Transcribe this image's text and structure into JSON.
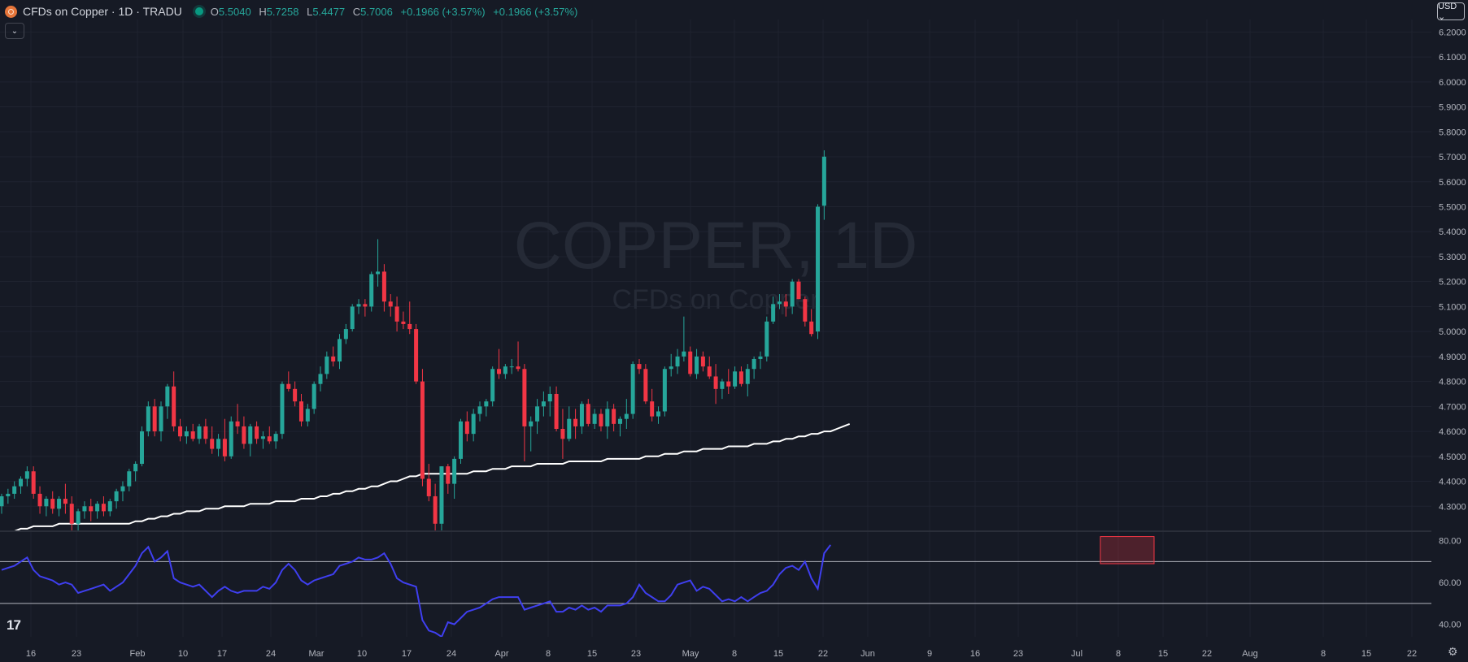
{
  "header": {
    "symbol_title": "CFDs on Copper · 1D · TRADU",
    "ohlc": {
      "o_label": "O",
      "o": "5.5040",
      "h_label": "H",
      "h": "5.7258",
      "l_label": "L",
      "l": "5.4477",
      "c_label": "C",
      "c": "5.7006",
      "change": "+0.1966 (+3.57%)",
      "change2": "+0.1966 (+3.57%)"
    }
  },
  "currency_button": "USD ⌄",
  "collapse_icon": "chevron-down-icon",
  "logo_text": "17",
  "settings_icon": "gear-icon",
  "colors": {
    "background": "#161a25",
    "up": "#26a69a",
    "down": "#f23645",
    "ma": "#ffffff",
    "rsi": "#3f3ff0",
    "grid": "#1f2330",
    "axis_text": "#b2b5be"
  },
  "chart_data": {
    "type": "candlestick",
    "watermark": {
      "main": "COPPER, 1D",
      "sub": "CFDs on Copper"
    },
    "price_axis": {
      "ylim": [
        4.2,
        6.25
      ],
      "ticks": [
        "4.3000",
        "4.4000",
        "4.5000",
        "4.6000",
        "4.7000",
        "4.8000",
        "4.9000",
        "5.0000",
        "5.1000",
        "5.2000",
        "5.3000",
        "5.4000",
        "5.5000",
        "5.6000",
        "5.7000",
        "5.8000",
        "5.9000",
        "6.0000",
        "6.1000",
        "6.2000"
      ]
    },
    "time_axis": {
      "labels": [
        "16",
        "23",
        "Feb",
        "10",
        "17",
        "24",
        "Mar",
        "10",
        "17",
        "24",
        "Apr",
        "8",
        "15",
        "23",
        "May",
        "8",
        "15",
        "22",
        "Jun",
        "9",
        "16",
        "23",
        "Jul",
        "8",
        "15",
        "22",
        "Aug",
        "8",
        "15",
        "22"
      ]
    },
    "candles": [
      [
        4.3,
        4.35,
        4.27,
        4.34
      ],
      [
        4.34,
        4.37,
        4.31,
        4.35
      ],
      [
        4.35,
        4.4,
        4.33,
        4.38
      ],
      [
        4.38,
        4.42,
        4.35,
        4.41
      ],
      [
        4.41,
        4.46,
        4.38,
        4.44
      ],
      [
        4.44,
        4.46,
        4.33,
        4.35
      ],
      [
        4.35,
        4.38,
        4.27,
        4.3
      ],
      [
        4.3,
        4.34,
        4.26,
        4.33
      ],
      [
        4.33,
        4.36,
        4.27,
        4.29
      ],
      [
        4.29,
        4.34,
        4.26,
        4.33
      ],
      [
        4.33,
        4.39,
        4.27,
        4.31
      ],
      [
        4.31,
        4.34,
        4.2,
        4.23
      ],
      [
        4.23,
        4.29,
        4.2,
        4.28
      ],
      [
        4.28,
        4.32,
        4.25,
        4.3
      ],
      [
        4.3,
        4.33,
        4.24,
        4.28
      ],
      [
        4.28,
        4.32,
        4.25,
        4.31
      ],
      [
        4.31,
        4.34,
        4.26,
        4.28
      ],
      [
        4.28,
        4.33,
        4.26,
        4.32
      ],
      [
        4.32,
        4.37,
        4.29,
        4.36
      ],
      [
        4.36,
        4.4,
        4.32,
        4.38
      ],
      [
        4.38,
        4.45,
        4.36,
        4.44
      ],
      [
        4.44,
        4.48,
        4.4,
        4.47
      ],
      [
        4.47,
        4.62,
        4.46,
        4.6
      ],
      [
        4.6,
        4.72,
        4.58,
        4.7
      ],
      [
        4.7,
        4.73,
        4.58,
        4.6
      ],
      [
        4.6,
        4.72,
        4.56,
        4.7
      ],
      [
        4.7,
        4.79,
        4.65,
        4.78
      ],
      [
        4.78,
        4.84,
        4.6,
        4.62
      ],
      [
        4.62,
        4.65,
        4.56,
        4.58
      ],
      [
        4.58,
        4.62,
        4.55,
        4.6
      ],
      [
        4.6,
        4.63,
        4.56,
        4.57
      ],
      [
        4.57,
        4.63,
        4.55,
        4.62
      ],
      [
        4.62,
        4.65,
        4.55,
        4.57
      ],
      [
        4.57,
        4.62,
        4.51,
        4.53
      ],
      [
        4.53,
        4.59,
        4.5,
        4.57
      ],
      [
        4.57,
        4.65,
        4.48,
        4.5
      ],
      [
        4.5,
        4.66,
        4.49,
        4.64
      ],
      [
        4.64,
        4.71,
        4.59,
        4.62
      ],
      [
        4.62,
        4.66,
        4.53,
        4.55
      ],
      [
        4.55,
        4.63,
        4.5,
        4.62
      ],
      [
        4.62,
        4.64,
        4.55,
        4.57
      ],
      [
        4.57,
        4.6,
        4.53,
        4.58
      ],
      [
        4.58,
        4.62,
        4.55,
        4.56
      ],
      [
        4.56,
        4.6,
        4.53,
        4.59
      ],
      [
        4.59,
        4.8,
        4.57,
        4.79
      ],
      [
        4.79,
        4.84,
        4.76,
        4.77
      ],
      [
        4.77,
        4.8,
        4.7,
        4.72
      ],
      [
        4.72,
        4.75,
        4.62,
        4.64
      ],
      [
        4.64,
        4.71,
        4.62,
        4.69
      ],
      [
        4.69,
        4.8,
        4.67,
        4.79
      ],
      [
        4.79,
        4.86,
        4.76,
        4.83
      ],
      [
        4.83,
        4.92,
        4.81,
        4.9
      ],
      [
        4.9,
        4.94,
        4.86,
        4.88
      ],
      [
        4.88,
        4.99,
        4.85,
        4.97
      ],
      [
        4.97,
        5.03,
        4.95,
        5.01
      ],
      [
        5.01,
        5.11,
        5.0,
        5.1
      ],
      [
        5.1,
        5.13,
        5.07,
        5.11
      ],
      [
        5.11,
        5.13,
        5.06,
        5.1
      ],
      [
        5.1,
        5.24,
        5.08,
        5.23
      ],
      [
        5.23,
        5.37,
        5.18,
        5.24
      ],
      [
        5.24,
        5.27,
        5.08,
        5.12
      ],
      [
        5.12,
        5.15,
        5.06,
        5.1
      ],
      [
        5.1,
        5.14,
        5.0,
        5.04
      ],
      [
        5.04,
        5.08,
        5.01,
        5.03
      ],
      [
        5.03,
        5.12,
        4.99,
        5.01
      ],
      [
        5.01,
        5.03,
        4.79,
        4.8
      ],
      [
        4.8,
        4.85,
        4.38,
        4.41
      ],
      [
        4.41,
        4.47,
        4.32,
        4.34
      ],
      [
        4.34,
        4.39,
        4.2,
        4.23
      ],
      [
        4.23,
        4.46,
        4.2,
        4.46
      ],
      [
        4.46,
        4.47,
        4.35,
        4.39
      ],
      [
        4.39,
        4.5,
        4.33,
        4.49
      ],
      [
        4.49,
        4.65,
        4.47,
        4.64
      ],
      [
        4.64,
        4.68,
        4.56,
        4.59
      ],
      [
        4.59,
        4.69,
        4.56,
        4.67
      ],
      [
        4.67,
        4.72,
        4.64,
        4.7
      ],
      [
        4.7,
        4.73,
        4.66,
        4.72
      ],
      [
        4.72,
        4.86,
        4.7,
        4.85
      ],
      [
        4.85,
        4.93,
        4.81,
        4.83
      ],
      [
        4.83,
        4.87,
        4.81,
        4.86
      ],
      [
        4.86,
        4.89,
        4.83,
        4.86
      ],
      [
        4.86,
        4.96,
        4.84,
        4.85
      ],
      [
        4.85,
        4.87,
        4.48,
        4.62
      ],
      [
        4.62,
        4.66,
        4.52,
        4.64
      ],
      [
        4.64,
        4.73,
        4.59,
        4.7
      ],
      [
        4.7,
        4.76,
        4.66,
        4.72
      ],
      [
        4.72,
        4.78,
        4.66,
        4.75
      ],
      [
        4.75,
        4.78,
        4.6,
        4.61
      ],
      [
        4.61,
        4.69,
        4.49,
        4.57
      ],
      [
        4.57,
        4.7,
        4.56,
        4.65
      ],
      [
        4.65,
        4.69,
        4.57,
        4.62
      ],
      [
        4.62,
        4.72,
        4.59,
        4.71
      ],
      [
        4.71,
        4.73,
        4.62,
        4.63
      ],
      [
        4.63,
        4.69,
        4.61,
        4.67
      ],
      [
        4.67,
        4.69,
        4.6,
        4.62
      ],
      [
        4.62,
        4.72,
        4.57,
        4.69
      ],
      [
        4.69,
        4.71,
        4.6,
        4.63
      ],
      [
        4.63,
        4.66,
        4.58,
        4.65
      ],
      [
        4.65,
        4.73,
        4.61,
        4.67
      ],
      [
        4.67,
        4.88,
        4.65,
        4.87
      ],
      [
        4.87,
        4.89,
        4.83,
        4.85
      ],
      [
        4.85,
        4.87,
        4.71,
        4.72
      ],
      [
        4.72,
        4.77,
        4.64,
        4.66
      ],
      [
        4.66,
        4.7,
        4.63,
        4.68
      ],
      [
        4.68,
        4.86,
        4.66,
        4.85
      ],
      [
        4.85,
        4.91,
        4.82,
        4.86
      ],
      [
        4.86,
        4.93,
        4.83,
        4.9
      ],
      [
        4.9,
        5.06,
        4.88,
        4.92
      ],
      [
        4.92,
        4.94,
        4.82,
        4.83
      ],
      [
        4.83,
        4.93,
        4.81,
        4.9
      ],
      [
        4.9,
        4.92,
        4.84,
        4.86
      ],
      [
        4.86,
        4.9,
        4.81,
        4.82
      ],
      [
        4.82,
        4.87,
        4.71,
        4.77
      ],
      [
        4.77,
        4.81,
        4.73,
        4.8
      ],
      [
        4.8,
        4.85,
        4.75,
        4.78
      ],
      [
        4.78,
        4.86,
        4.77,
        4.84
      ],
      [
        4.84,
        4.86,
        4.78,
        4.79
      ],
      [
        4.79,
        4.87,
        4.74,
        4.85
      ],
      [
        4.85,
        4.9,
        4.81,
        4.89
      ],
      [
        4.89,
        4.92,
        4.85,
        4.9
      ],
      [
        4.9,
        5.06,
        4.88,
        5.04
      ],
      [
        5.04,
        5.14,
        5.03,
        5.11
      ],
      [
        5.11,
        5.15,
        5.09,
        5.12
      ],
      [
        5.12,
        5.15,
        5.06,
        5.1
      ],
      [
        5.1,
        5.21,
        5.07,
        5.2
      ],
      [
        5.2,
        5.21,
        5.13,
        5.13
      ],
      [
        5.13,
        5.14,
        5.02,
        5.04
      ],
      [
        5.04,
        5.09,
        4.98,
        4.99
      ],
      [
        5.0,
        5.51,
        4.97,
        5.5
      ],
      [
        5.504,
        5.7258,
        5.4477,
        5.7006
      ]
    ],
    "series": [
      {
        "name": "",
        "type": "line",
        "values": [
          4.18,
          4.19,
          4.2,
          4.21,
          4.21,
          4.22,
          4.22,
          4.22,
          4.22,
          4.23,
          4.23,
          4.23,
          4.23,
          4.23,
          4.23,
          4.23,
          4.23,
          4.23,
          4.23,
          4.23,
          4.23,
          4.24,
          4.24,
          4.25,
          4.25,
          4.26,
          4.26,
          4.27,
          4.27,
          4.28,
          4.28,
          4.28,
          4.29,
          4.29,
          4.29,
          4.3,
          4.3,
          4.3,
          4.3,
          4.31,
          4.31,
          4.31,
          4.31,
          4.32,
          4.32,
          4.32,
          4.32,
          4.33,
          4.33,
          4.33,
          4.34,
          4.34,
          4.35,
          4.35,
          4.36,
          4.36,
          4.37,
          4.37,
          4.38,
          4.38,
          4.39,
          4.4,
          4.4,
          4.41,
          4.42,
          4.42,
          4.43,
          4.43,
          4.43,
          4.43,
          4.43,
          4.43,
          4.43,
          4.43,
          4.44,
          4.44,
          4.44,
          4.45,
          4.45,
          4.45,
          4.46,
          4.46,
          4.46,
          4.46,
          4.47,
          4.47,
          4.47,
          4.47,
          4.47,
          4.48,
          4.48,
          4.48,
          4.48,
          4.48,
          4.48,
          4.49,
          4.49,
          4.49,
          4.49,
          4.49,
          4.49,
          4.5,
          4.5,
          4.5,
          4.51,
          4.51,
          4.51,
          4.52,
          4.52,
          4.52,
          4.53,
          4.53,
          4.53,
          4.53,
          4.54,
          4.54,
          4.54,
          4.54,
          4.55,
          4.55,
          4.55,
          4.56,
          4.56,
          4.57,
          4.57,
          4.58,
          4.58,
          4.59,
          4.59,
          4.6,
          4.6,
          4.61,
          4.62,
          4.63
        ]
      }
    ],
    "rsi": {
      "axis_ticks": [
        "40.00",
        "60.00",
        "80.00"
      ],
      "ylim": [
        34,
        83
      ],
      "levels": [
        70,
        50,
        30
      ],
      "values": [
        66,
        67,
        68,
        70,
        72,
        66,
        63,
        62,
        61,
        59,
        60,
        59,
        55,
        56,
        57,
        58,
        59,
        56,
        58,
        60,
        64,
        68,
        74,
        77,
        70,
        72,
        75,
        62,
        60,
        59,
        58,
        59,
        56,
        53,
        56,
        58,
        56,
        55,
        56,
        56,
        56,
        58,
        57,
        60,
        66,
        69,
        66,
        61,
        59,
        61,
        62,
        63,
        64,
        68,
        69,
        70,
        72,
        71,
        71,
        72,
        74,
        69,
        62,
        60,
        59,
        58,
        42,
        37,
        36,
        34,
        41,
        40,
        43,
        46,
        47,
        48,
        50,
        52,
        53,
        53,
        53,
        53,
        47,
        48,
        49,
        50,
        51,
        46,
        46,
        48,
        47,
        49,
        47,
        48,
        46,
        49,
        49,
        49,
        50,
        53,
        59,
        55,
        53,
        51,
        51,
        54,
        59,
        60,
        61,
        56,
        58,
        57,
        54,
        51,
        52,
        51,
        53,
        51,
        53,
        55,
        56,
        59,
        64,
        67,
        68,
        66,
        70,
        62,
        57,
        74,
        78
      ]
    },
    "highlight_box": {
      "rsi_range": [
        69,
        82
      ]
    }
  }
}
